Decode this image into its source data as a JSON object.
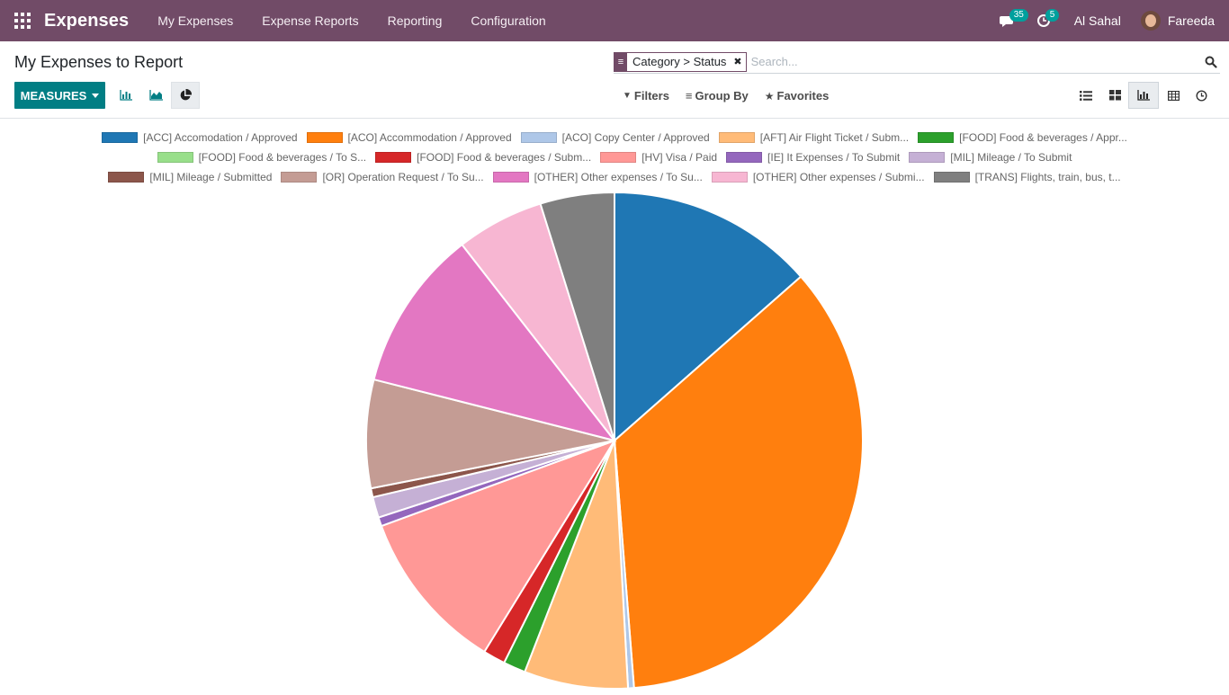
{
  "navbar": {
    "app_title": "Expenses",
    "menu": [
      "My Expenses",
      "Expense Reports",
      "Reporting",
      "Configuration"
    ],
    "messages_count": "35",
    "activities_count": "5",
    "company": "Al Sahal",
    "user": "Fareeda",
    "bg_color": "#714b67"
  },
  "control_panel": {
    "title": "My Expenses to Report",
    "facet": "Category > Status",
    "search_placeholder": "Search...",
    "measures_label": "MEASURES",
    "filters_label": "Filters",
    "groupby_label": "Group By",
    "favorites_label": "Favorites",
    "chart_modes": [
      "bar-chart-icon",
      "line-chart-icon",
      "pie-chart-icon"
    ],
    "active_chart_mode": "pie-chart-icon",
    "views": [
      "list-icon",
      "kanban-icon",
      "graph-icon",
      "pivot-icon",
      "activity-icon"
    ],
    "active_view": "graph-icon"
  },
  "chart_data": {
    "type": "pie",
    "legend_position": "top",
    "slices": [
      {
        "label": "[ACC] Accomodation / Approved",
        "value": 14.0,
        "color": "#1f77b4"
      },
      {
        "label": "[ACO] Accommodation / Approved",
        "value": 36.5,
        "color": "#ff7f0e"
      },
      {
        "label": "[ACO] Copy Center / Approved",
        "value": 0.4,
        "color": "#aec7e8"
      },
      {
        "label": "[AFT] Air Flight Ticket / Subm...",
        "value": 7.0,
        "color": "#ffbb78"
      },
      {
        "label": "[FOOD] Food & beverages / Appr...",
        "value": 1.5,
        "color": "#2ca02c"
      },
      {
        "label": "[FOOD] Food & beverages / To S...",
        "value": 0.0,
        "color": "#98df8a"
      },
      {
        "label": "[FOOD] Food & beverages / Subm...",
        "value": 1.5,
        "color": "#d62728"
      },
      {
        "label": "[HV] Visa / Paid",
        "value": 11.0,
        "color": "#ff9896"
      },
      {
        "label": "[IE] It Expenses / To Submit",
        "value": 0.6,
        "color": "#9467bd"
      },
      {
        "label": "[MIL] Mileage / To Submit",
        "value": 1.4,
        "color": "#c5b0d5"
      },
      {
        "label": "[MIL] Mileage / Submitted",
        "value": 0.6,
        "color": "#8c564b"
      },
      {
        "label": "[OR] Operation Request / To Su...",
        "value": 7.3,
        "color": "#c49c94"
      },
      {
        "label": "[OTHER] Other expenses / To Su...",
        "value": 10.9,
        "color": "#e377c2"
      },
      {
        "label": "[OTHER] Other expenses / Submi...",
        "value": 5.9,
        "color": "#f7b6d2"
      },
      {
        "label": "[TRANS] Flights, train, bus, t...",
        "value": 5.0,
        "color": "#7f7f7f"
      }
    ]
  }
}
